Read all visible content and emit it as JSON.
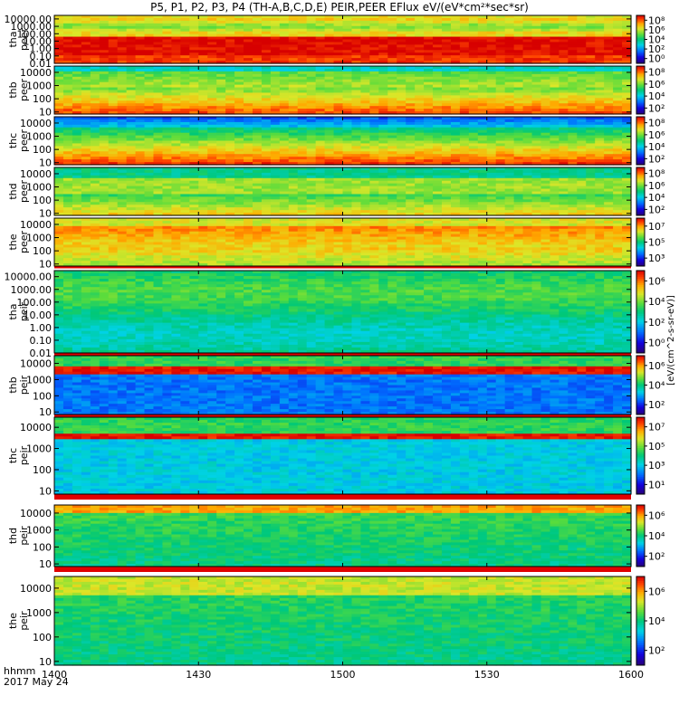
{
  "title": "P5, P1, P2, P3, P4 (TH-A,B,C,D,E) PEIR,PEER EFlux eV/(eV*cm²*sec*sr)",
  "chart_data": {
    "type": "heatmap",
    "title": "P5, P1, P2, P3, P4 (TH-A,B,C,D,E) PEIR,PEER EFlux eV/(eV*cm²*sec*sr)",
    "x_tick_labels": [
      "1400",
      "1430",
      "1500",
      "1530",
      "1600"
    ],
    "x_range": [
      "1400",
      "1600"
    ],
    "x_info": [
      "hhmm",
      "2017 May 24"
    ],
    "colorbar_unit_label": "[eV/(cm^2-s-sr-eV)]",
    "panels": [
      {
        "label": [
          "tha",
          "peer"
        ],
        "yticks": [
          "10000.00",
          "1000.00",
          "100.00",
          "10.00",
          "1.00",
          "0.10",
          "0.01"
        ],
        "ylog_range": [
          0.01,
          30000
        ],
        "cb_ticks": [
          "10⁸",
          "10⁶",
          "10⁴",
          "10²",
          "10⁰"
        ],
        "cb_range": [
          0,
          8
        ]
      },
      {
        "label": [
          "thb",
          "peer"
        ],
        "yticks": [
          "10000",
          "1000",
          "100",
          "10"
        ],
        "ylog_range": [
          7,
          30000
        ],
        "cb_ticks": [
          "10⁸",
          "10⁶",
          "10⁴",
          "10²"
        ],
        "cb_range": [
          1,
          8
        ]
      },
      {
        "label": [
          "thc",
          "peer"
        ],
        "yticks": [
          "10000",
          "1000",
          "100",
          "10"
        ],
        "ylog_range": [
          7,
          30000
        ],
        "cb_ticks": [
          "10⁸",
          "10⁶",
          "10⁴",
          "10²"
        ],
        "cb_range": [
          1,
          8
        ]
      },
      {
        "label": [
          "thd",
          "peer"
        ],
        "yticks": [
          "10000",
          "1000",
          "100",
          "10"
        ],
        "ylog_range": [
          7,
          30000
        ],
        "cb_ticks": [
          "10⁸",
          "10⁶",
          "10⁴",
          "10²"
        ],
        "cb_range": [
          1,
          8
        ]
      },
      {
        "label": [
          "the",
          "peer"
        ],
        "yticks": [
          "10000",
          "1000",
          "100",
          "10"
        ],
        "ylog_range": [
          7,
          30000
        ],
        "cb_ticks": [
          "10⁷",
          "10⁵",
          "10³"
        ],
        "cb_range": [
          2,
          8
        ]
      },
      {
        "label": [
          "tha",
          "peir"
        ],
        "yticks": [
          "10000.00",
          "1000.00",
          "100.00",
          "10.00",
          "1.00",
          "0.10",
          "0.01"
        ],
        "ylog_range": [
          0.01,
          30000
        ],
        "cb_ticks": [
          "10⁶",
          "10⁴",
          "10²",
          "10⁰"
        ],
        "cb_range": [
          0,
          7
        ]
      },
      {
        "label": [
          "thb",
          "peir"
        ],
        "yticks": [
          "10000",
          "1000",
          "100",
          "10"
        ],
        "ylog_range": [
          7,
          30000
        ],
        "cb_ticks": [
          "10⁶",
          "10⁴",
          "10²"
        ],
        "cb_range": [
          1,
          7
        ]
      },
      {
        "label": [
          "thc",
          "peir"
        ],
        "yticks": [
          "10000",
          "1000",
          "100",
          "10"
        ],
        "ylog_range": [
          7,
          30000
        ],
        "cb_ticks": [
          "10⁷",
          "10⁵",
          "10³",
          "10¹"
        ],
        "cb_range": [
          1,
          8
        ]
      },
      {
        "label": [
          "thd",
          "peir"
        ],
        "yticks": [
          "10000",
          "1000",
          "100",
          "10"
        ],
        "ylog_range": [
          7,
          30000
        ],
        "cb_ticks": [
          "10⁶",
          "10⁴",
          "10²"
        ],
        "cb_range": [
          1,
          7
        ]
      },
      {
        "label": [
          "the",
          "peir"
        ],
        "yticks": [
          "10000",
          "1000",
          "100",
          "10"
        ],
        "ylog_range": [
          7,
          30000
        ],
        "cb_ticks": [
          "10⁶",
          "10⁴",
          "10²"
        ],
        "cb_range": [
          1,
          7
        ]
      }
    ]
  }
}
